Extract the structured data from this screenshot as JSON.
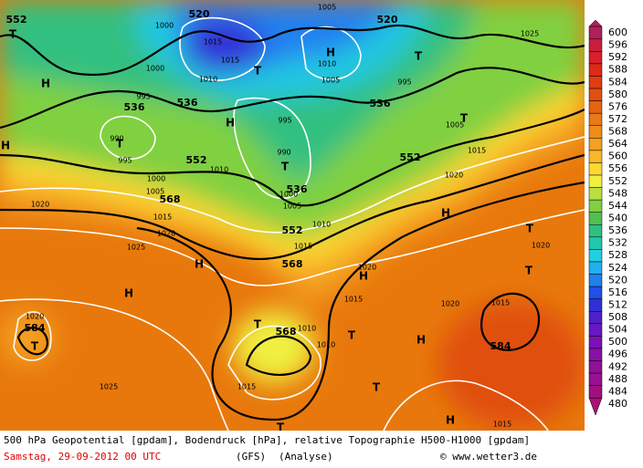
{
  "map": {
    "labels": [
      "552",
      "520",
      "520",
      "1005",
      "1000",
      "1015",
      "1015",
      "1010",
      "1000",
      "1010",
      "1005",
      "995",
      "1025",
      "536",
      "536",
      "536",
      "995",
      "995",
      "990",
      "990",
      "995",
      "552",
      "1010",
      "552",
      "1015",
      "1020",
      "1000",
      "1005",
      "568",
      "536",
      "1000",
      "1005",
      "1015",
      "1020",
      "1010",
      "552",
      "1015",
      "1020",
      "1025",
      "568",
      "1020",
      "1015",
      "1020",
      "1015",
      "1020",
      "584",
      "1020",
      "568",
      "1010",
      "1010",
      "584",
      "1025",
      "1015",
      "1015",
      "1005"
    ],
    "symbols": [
      "T",
      "T",
      "H",
      "H",
      "H",
      "T",
      "T",
      "H",
      "H",
      "T",
      "T",
      "H",
      "H",
      "H",
      "T",
      "T",
      "T",
      "H",
      "T",
      "H",
      "T",
      "T",
      "T"
    ]
  },
  "legend": {
    "levels": [
      600,
      596,
      592,
      588,
      584,
      580,
      576,
      572,
      568,
      564,
      560,
      556,
      552,
      548,
      544,
      540,
      536,
      532,
      528,
      524,
      520,
      516,
      512,
      508,
      504,
      500,
      496,
      492,
      488,
      484,
      480
    ],
    "colors": [
      "#b0205a",
      "#c8203c",
      "#d8202c",
      "#e02818",
      "#e03c10",
      "#e05010",
      "#e46410",
      "#e87818",
      "#f08c18",
      "#f4a020",
      "#f8b828",
      "#fcd830",
      "#f0f040",
      "#b8e040",
      "#80d040",
      "#50c050",
      "#30c080",
      "#20c8b0",
      "#20d0e0",
      "#20b0f0",
      "#2080f0",
      "#2050e8",
      "#3030d8",
      "#5020c8",
      "#6818c0",
      "#7c10b8",
      "#8810a8",
      "#901098",
      "#981090",
      "#a01080",
      "#a81078"
    ]
  },
  "footer": {
    "line1": "500 hPa Geopotential [gpdam], Bodendruck [hPa], relative Topographie H500-H1000 [gpdam]",
    "date": "Samstag, 29-09-2012  00 UTC",
    "model": "(GFS)",
    "run": "(Analyse)",
    "credit": "© www.wetter3.de"
  }
}
